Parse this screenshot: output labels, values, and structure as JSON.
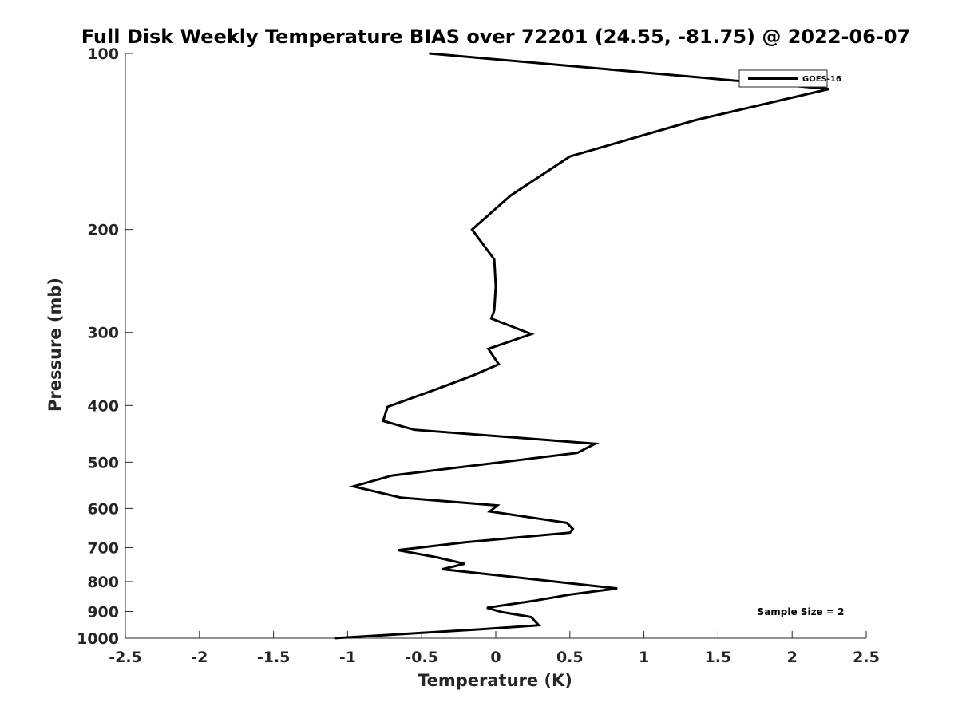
{
  "chart_data": {
    "type": "line",
    "title": "Full Disk Weekly Temperature BIAS over 72201 (24.55, -81.75) @ 2022-06-07",
    "xlabel": "Temperature (K)",
    "ylabel": "Pressure (mb)",
    "xlim": [
      -2.5,
      2.5
    ],
    "ylim": [
      100,
      1000
    ],
    "y_scale": "log",
    "y_reversed": true,
    "grid": false,
    "legend_position": "top-right",
    "x_ticks": [
      -2.5,
      -2,
      -1.5,
      -1,
      -0.5,
      0,
      0.5,
      1,
      1.5,
      2,
      2.5
    ],
    "x_tick_labels": [
      "-2.5",
      "-2",
      "-1.5",
      "-1",
      "-0.5",
      "0",
      "0.5",
      "1",
      "1.5",
      "2",
      "2.5"
    ],
    "y_ticks": [
      100,
      200,
      300,
      400,
      500,
      600,
      700,
      800,
      900,
      1000
    ],
    "y_tick_labels": [
      "100",
      "200",
      "300",
      "400",
      "500",
      "600",
      "700",
      "800",
      "900",
      "1000"
    ],
    "series": [
      {
        "name": "GOES-16",
        "color": "#000000",
        "points": [
          {
            "t": -0.45,
            "p": 100
          },
          {
            "t": 2.25,
            "p": 115
          },
          {
            "t": 1.35,
            "p": 130
          },
          {
            "t": 0.5,
            "p": 150
          },
          {
            "t": 0.1,
            "p": 175
          },
          {
            "t": -0.16,
            "p": 200
          },
          {
            "t": -0.01,
            "p": 225
          },
          {
            "t": 0.0,
            "p": 250
          },
          {
            "t": -0.01,
            "p": 275
          },
          {
            "t": -0.03,
            "p": 284
          },
          {
            "t": 0.24,
            "p": 302
          },
          {
            "t": -0.05,
            "p": 320
          },
          {
            "t": 0.02,
            "p": 340
          },
          {
            "t": -0.15,
            "p": 355
          },
          {
            "t": -0.4,
            "p": 375
          },
          {
            "t": -0.73,
            "p": 402
          },
          {
            "t": -0.76,
            "p": 425
          },
          {
            "t": -0.55,
            "p": 440
          },
          {
            "t": 0.67,
            "p": 465
          },
          {
            "t": 0.55,
            "p": 482
          },
          {
            "t": -0.7,
            "p": 527
          },
          {
            "t": -0.96,
            "p": 550
          },
          {
            "t": -0.64,
            "p": 575
          },
          {
            "t": 0.01,
            "p": 593
          },
          {
            "t": -0.04,
            "p": 607
          },
          {
            "t": 0.48,
            "p": 635
          },
          {
            "t": 0.52,
            "p": 650
          },
          {
            "t": 0.5,
            "p": 660
          },
          {
            "t": -0.2,
            "p": 685
          },
          {
            "t": -0.66,
            "p": 707
          },
          {
            "t": -0.4,
            "p": 727
          },
          {
            "t": -0.21,
            "p": 746
          },
          {
            "t": -0.36,
            "p": 762
          },
          {
            "t": 0.82,
            "p": 822
          },
          {
            "t": 0.5,
            "p": 842
          },
          {
            "t": 0.27,
            "p": 862
          },
          {
            "t": -0.06,
            "p": 887
          },
          {
            "t": 0.04,
            "p": 902
          },
          {
            "t": 0.24,
            "p": 920
          },
          {
            "t": 0.29,
            "p": 950
          },
          {
            "t": -0.1,
            "p": 965
          },
          {
            "t": -1.09,
            "p": 1000
          }
        ]
      }
    ],
    "annotation": "Sample Size = 2"
  }
}
